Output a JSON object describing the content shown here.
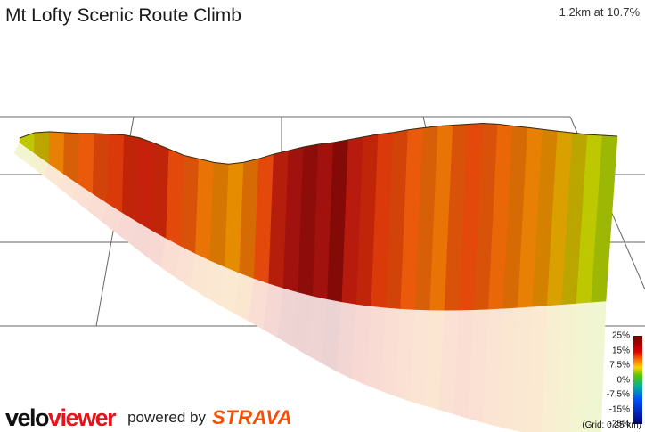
{
  "header": {
    "title": "Mt Lofty Scenic Route Climb",
    "summary": "1.2km at 10.7%"
  },
  "legend": {
    "labels": [
      "25%",
      "15%",
      "7.5%",
      "0%",
      "-7.5%",
      "-15%",
      "-25%"
    ],
    "grid_note": "(Grid: 0.25 km)"
  },
  "footer": {
    "brand_velo": "velo",
    "brand_viewer": "viewer",
    "powered_by": "powered by",
    "strava": "STRAVA"
  },
  "chart_data": {
    "type": "area",
    "title": "Mt Lofty Scenic Route Climb",
    "xlabel": "",
    "ylabel": "",
    "distance_km": 1.2,
    "avg_gradient_pct": 10.7,
    "grid_km": 0.25,
    "gradient_scale_pct": [
      25,
      15,
      7.5,
      0,
      -7.5,
      -15,
      -25
    ],
    "series": [
      {
        "x": [
          0.0,
          0.03,
          0.06,
          0.09,
          0.12,
          0.15,
          0.18,
          0.21,
          0.24,
          0.27,
          0.3,
          0.33,
          0.36,
          0.39,
          0.42,
          0.45,
          0.48,
          0.51,
          0.54,
          0.57,
          0.6,
          0.63,
          0.66,
          0.69,
          0.72,
          0.75,
          0.78,
          0.81,
          0.84,
          0.87,
          0.9,
          0.93,
          0.96,
          0.99,
          1.02,
          1.05,
          1.08,
          1.11,
          1.14,
          1.17,
          1.2
        ],
        "values": [
          4,
          5,
          6,
          9,
          11,
          12,
          13,
          14,
          15,
          16,
          15,
          13,
          12,
          10,
          9,
          8,
          10,
          13,
          16,
          19,
          20,
          19,
          21,
          17,
          15,
          14,
          13,
          12,
          11,
          10,
          12,
          13,
          12,
          11,
          10,
          9,
          8,
          7,
          6,
          5,
          4
        ]
      }
    ]
  }
}
